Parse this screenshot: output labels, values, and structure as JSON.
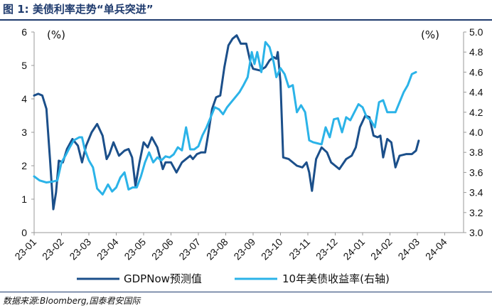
{
  "title": "图 1:  美债利率走势“单兵突进”",
  "source": "数据来源:Bloomberg,国泰君安国际",
  "colors": {
    "title": "#1f3b6e",
    "gdpnow": "#1b4f8a",
    "treasury10y": "#2bb3e8",
    "axis": "#999999"
  },
  "chart_data": {
    "type": "line",
    "title": "美债利率走势“单兵突进”",
    "left_axis": {
      "unit_label": "(%)",
      "ylim": [
        0,
        6
      ],
      "ticks": [
        "0",
        "1",
        "2",
        "3",
        "4",
        "5",
        "6"
      ]
    },
    "right_axis": {
      "unit_label": "(%)",
      "ylim": [
        3.0,
        5.0
      ],
      "ticks": [
        "3.0",
        "3.2",
        "3.4",
        "3.6",
        "3.8",
        "4.0",
        "4.2",
        "4.4",
        "4.6",
        "4.8",
        "5.0"
      ]
    },
    "x_tick_labels": [
      "23-01",
      "23-02",
      "23-03",
      "23-04",
      "23-05",
      "23-06",
      "23-07",
      "23-08",
      "23-09",
      "23-10",
      "23-11",
      "23-12",
      "24-01",
      "24-02",
      "24-03",
      "24-04"
    ],
    "x_range": [
      0,
      15.35
    ],
    "legend_position": "bottom",
    "series": [
      {
        "name": "GDPNow预测值",
        "axis": "left",
        "color": "#1b4f8a",
        "points": [
          [
            0.0,
            4.1
          ],
          [
            0.15,
            4.15
          ],
          [
            0.3,
            4.1
          ],
          [
            0.45,
            3.7
          ],
          [
            0.58,
            2.2
          ],
          [
            0.7,
            0.7
          ],
          [
            0.8,
            1.2
          ],
          [
            0.9,
            2.15
          ],
          [
            1.05,
            2.1
          ],
          [
            1.2,
            2.5
          ],
          [
            1.4,
            2.8
          ],
          [
            1.6,
            2.6
          ],
          [
            1.75,
            2.1
          ],
          [
            1.9,
            2.6
          ],
          [
            2.1,
            3.0
          ],
          [
            2.3,
            3.25
          ],
          [
            2.5,
            2.9
          ],
          [
            2.65,
            2.2
          ],
          [
            2.75,
            2.35
          ],
          [
            2.9,
            2.7
          ],
          [
            3.1,
            2.3
          ],
          [
            3.3,
            2.45
          ],
          [
            3.45,
            2.5
          ],
          [
            3.58,
            2.25
          ],
          [
            3.7,
            1.4
          ],
          [
            3.85,
            2.1
          ],
          [
            4.0,
            2.7
          ],
          [
            4.15,
            2.55
          ],
          [
            4.3,
            2.85
          ],
          [
            4.5,
            2.55
          ],
          [
            4.7,
            1.9
          ],
          [
            4.8,
            2.1
          ],
          [
            5.0,
            2.1
          ],
          [
            5.2,
            1.8
          ],
          [
            5.4,
            2.1
          ],
          [
            5.55,
            2.2
          ],
          [
            5.7,
            2.3
          ],
          [
            5.8,
            2.2
          ],
          [
            5.95,
            2.35
          ],
          [
            6.1,
            2.4
          ],
          [
            6.25,
            2.4
          ],
          [
            6.35,
            2.9
          ],
          [
            6.5,
            3.7
          ],
          [
            6.65,
            4.05
          ],
          [
            6.8,
            4.1
          ],
          [
            6.95,
            4.95
          ],
          [
            7.1,
            5.6
          ],
          [
            7.25,
            5.8
          ],
          [
            7.4,
            5.9
          ],
          [
            7.55,
            5.65
          ],
          [
            7.75,
            5.65
          ],
          [
            7.9,
            5.1
          ],
          [
            8.0,
            4.9
          ],
          [
            8.25,
            4.85
          ],
          [
            8.45,
            4.95
          ],
          [
            8.6,
            5.15
          ],
          [
            8.75,
            5.25
          ],
          [
            8.85,
            5.2
          ],
          [
            8.9,
            5.4
          ],
          [
            9.0,
            4.5
          ],
          [
            9.1,
            2.25
          ],
          [
            9.3,
            2.2
          ],
          [
            9.6,
            2.0
          ],
          [
            9.8,
            1.95
          ],
          [
            9.95,
            2.1
          ],
          [
            10.05,
            1.8
          ],
          [
            10.15,
            1.25
          ],
          [
            10.3,
            2.2
          ],
          [
            10.5,
            2.55
          ],
          [
            10.7,
            2.4
          ],
          [
            10.85,
            2.1
          ],
          [
            11.0,
            2.0
          ],
          [
            11.15,
            1.9
          ],
          [
            11.4,
            2.2
          ],
          [
            11.6,
            2.3
          ],
          [
            11.75,
            2.55
          ],
          [
            11.9,
            3.15
          ],
          [
            12.1,
            3.5
          ],
          [
            12.25,
            3.45
          ],
          [
            12.4,
            2.9
          ],
          [
            12.55,
            2.85
          ],
          [
            12.65,
            2.9
          ],
          [
            12.75,
            2.25
          ],
          [
            12.9,
            2.8
          ],
          [
            13.05,
            2.7
          ],
          [
            13.2,
            1.95
          ],
          [
            13.35,
            2.3
          ],
          [
            13.6,
            2.35
          ],
          [
            13.8,
            2.35
          ],
          [
            13.95,
            2.45
          ],
          [
            14.05,
            2.75
          ]
        ]
      },
      {
        "name": "10年美债收益率(右轴)",
        "axis": "right",
        "color": "#2bb3e8",
        "points": [
          [
            0.0,
            3.56
          ],
          [
            0.2,
            3.52
          ],
          [
            0.45,
            3.5
          ],
          [
            0.7,
            3.51
          ],
          [
            0.85,
            3.52
          ],
          [
            1.0,
            3.7
          ],
          [
            1.15,
            3.77
          ],
          [
            1.3,
            3.85
          ],
          [
            1.45,
            3.92
          ],
          [
            1.65,
            3.95
          ],
          [
            1.75,
            3.95
          ],
          [
            1.85,
            3.83
          ],
          [
            2.0,
            3.72
          ],
          [
            2.15,
            3.65
          ],
          [
            2.3,
            3.44
          ],
          [
            2.5,
            3.38
          ],
          [
            2.7,
            3.48
          ],
          [
            2.85,
            3.41
          ],
          [
            3.0,
            3.45
          ],
          [
            3.15,
            3.55
          ],
          [
            3.3,
            3.6
          ],
          [
            3.45,
            3.43
          ],
          [
            3.6,
            3.45
          ],
          [
            3.75,
            3.45
          ],
          [
            3.9,
            3.56
          ],
          [
            4.05,
            3.7
          ],
          [
            4.2,
            3.8
          ],
          [
            4.35,
            3.7
          ],
          [
            4.5,
            3.75
          ],
          [
            4.65,
            3.72
          ],
          [
            4.8,
            3.76
          ],
          [
            4.95,
            3.75
          ],
          [
            5.1,
            3.78
          ],
          [
            5.25,
            3.85
          ],
          [
            5.4,
            3.82
          ],
          [
            5.55,
            4.05
          ],
          [
            5.7,
            3.83
          ],
          [
            5.85,
            3.83
          ],
          [
            6.0,
            3.86
          ],
          [
            6.15,
            3.97
          ],
          [
            6.3,
            4.05
          ],
          [
            6.45,
            4.15
          ],
          [
            6.6,
            4.25
          ],
          [
            6.75,
            4.23
          ],
          [
            6.9,
            4.18
          ],
          [
            7.05,
            4.25
          ],
          [
            7.2,
            4.3
          ],
          [
            7.35,
            4.35
          ],
          [
            7.5,
            4.4
          ],
          [
            7.65,
            4.47
          ],
          [
            7.8,
            4.55
          ],
          [
            7.95,
            4.8
          ],
          [
            8.05,
            4.68
          ],
          [
            8.15,
            4.8
          ],
          [
            8.3,
            4.6
          ],
          [
            8.45,
            4.9
          ],
          [
            8.6,
            4.85
          ],
          [
            8.75,
            4.7
          ],
          [
            8.85,
            4.55
          ],
          [
            9.0,
            4.64
          ],
          [
            9.15,
            4.58
          ],
          [
            9.3,
            4.45
          ],
          [
            9.45,
            4.47
          ],
          [
            9.6,
            4.2
          ],
          [
            9.75,
            4.27
          ],
          [
            9.9,
            4.2
          ],
          [
            10.05,
            3.92
          ],
          [
            10.2,
            3.9
          ],
          [
            10.35,
            3.89
          ],
          [
            10.5,
            3.88
          ],
          [
            10.65,
            4.05
          ],
          [
            10.8,
            3.95
          ],
          [
            10.95,
            4.13
          ],
          [
            11.1,
            4.14
          ],
          [
            11.25,
            4.0
          ],
          [
            11.4,
            4.15
          ],
          [
            11.55,
            4.12
          ],
          [
            11.7,
            4.2
          ],
          [
            11.85,
            4.28
          ],
          [
            12.0,
            4.25
          ],
          [
            12.15,
            4.15
          ],
          [
            12.3,
            4.12
          ],
          [
            12.45,
            4.05
          ],
          [
            12.6,
            4.3
          ],
          [
            12.75,
            4.32
          ],
          [
            12.9,
            4.2
          ],
          [
            13.05,
            4.2
          ],
          [
            13.2,
            4.2
          ],
          [
            13.35,
            4.3
          ],
          [
            13.5,
            4.4
          ],
          [
            13.65,
            4.47
          ],
          [
            13.8,
            4.58
          ],
          [
            13.95,
            4.6
          ]
        ]
      }
    ]
  }
}
